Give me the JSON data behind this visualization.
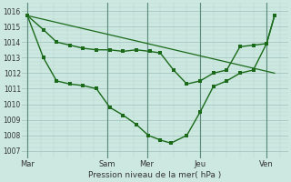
{
  "title": "Pression niveau de la mer( hPa )",
  "bg_color": "#cce8e0",
  "grid_color": "#aaccc4",
  "vline_color": "#5a8a7a",
  "line_color": "#1a6a1a",
  "ylim": [
    1006.5,
    1016.5
  ],
  "yticks": [
    1007,
    1008,
    1009,
    1010,
    1011,
    1012,
    1013,
    1014,
    1015,
    1016
  ],
  "xtick_labels": [
    "Mar",
    "Sam",
    "Mer",
    "Jeu",
    "Ven"
  ],
  "xtick_positions": [
    0.0,
    3.0,
    4.5,
    6.5,
    9.0
  ],
  "xlim": [
    -0.2,
    9.8
  ],
  "line1_x": [
    0.0,
    9.3
  ],
  "line1_y": [
    1015.7,
    1015.8
  ],
  "line2_x": [
    0.0,
    0.6,
    1.1,
    1.6,
    2.1,
    2.6,
    3.1,
    3.6,
    4.1,
    4.6,
    5.0,
    5.5,
    6.0,
    6.5,
    7.0,
    7.5,
    8.0,
    8.5,
    9.0,
    9.3
  ],
  "line2_y": [
    1015.7,
    1014.8,
    1014.0,
    1013.8,
    1013.6,
    1013.5,
    1013.5,
    1013.4,
    1013.5,
    1013.4,
    1013.3,
    1012.2,
    1011.3,
    1011.5,
    1012.0,
    1012.2,
    1013.7,
    1013.8,
    1013.9,
    1015.7
  ],
  "line3_x": [
    0.0,
    0.6,
    1.1,
    1.6,
    2.1,
    2.6,
    3.1,
    3.6,
    4.1,
    4.55,
    5.0,
    5.4,
    6.0,
    6.5,
    7.0,
    7.5,
    8.0,
    8.5,
    9.0,
    9.3
  ],
  "line3_y": [
    1015.7,
    1013.0,
    1011.5,
    1011.3,
    1011.2,
    1011.0,
    1009.8,
    1009.3,
    1008.7,
    1008.0,
    1007.7,
    1007.5,
    1008.0,
    1009.5,
    1011.15,
    1011.5,
    1012.0,
    1012.2,
    1013.9,
    1015.7
  ],
  "trend_x": [
    0.0,
    9.3
  ],
  "trend_y": [
    1015.7,
    1012.0
  ]
}
